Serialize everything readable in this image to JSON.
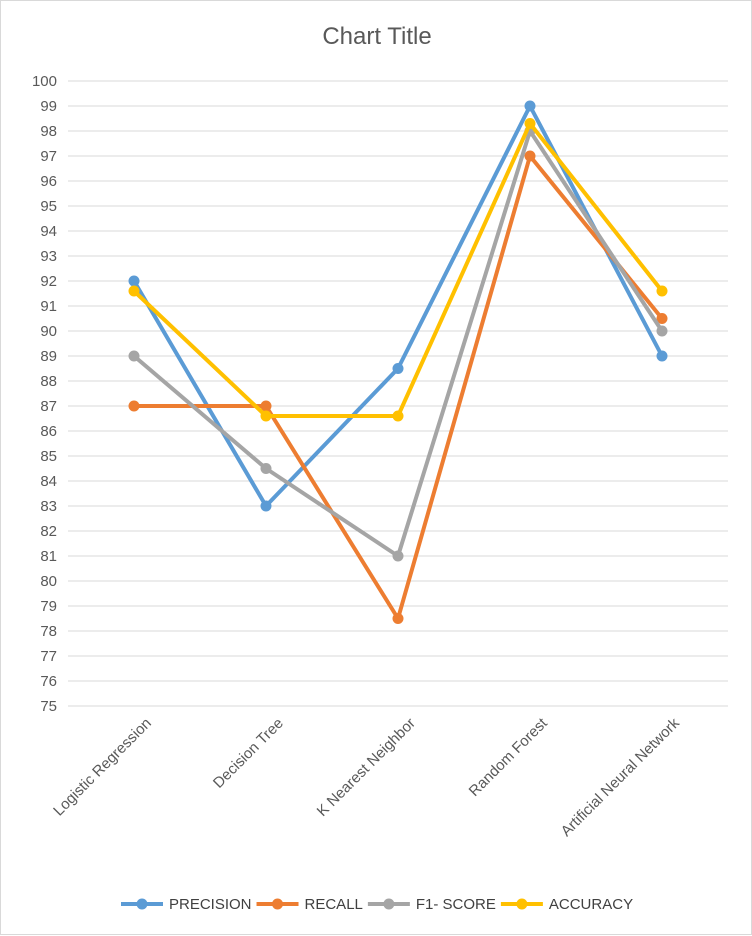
{
  "chart_data": {
    "type": "line",
    "title": "Chart Title",
    "categories": [
      "Logistic Regression",
      "Decision Tree",
      "K Nearest Neighbor",
      "Random Forest",
      "Artificial Neural Network"
    ],
    "ylim": [
      75,
      100
    ],
    "ytick_step": 1,
    "grid": true,
    "legend_position": "bottom",
    "series": [
      {
        "name": "PRECISION",
        "color": "#5b9bd5",
        "values": [
          92,
          83,
          88.5,
          99,
          89
        ]
      },
      {
        "name": "RECALL",
        "color": "#ed7d31",
        "values": [
          87,
          87,
          78.5,
          97,
          90.5
        ]
      },
      {
        "name": "F1- SCORE",
        "color": "#a5a5a5",
        "values": [
          89,
          84.5,
          81,
          98,
          90
        ]
      },
      {
        "name": "ACCURACY",
        "color": "#ffc000",
        "values": [
          91.6,
          86.6,
          86.6,
          98.3,
          91.6
        ]
      }
    ]
  }
}
